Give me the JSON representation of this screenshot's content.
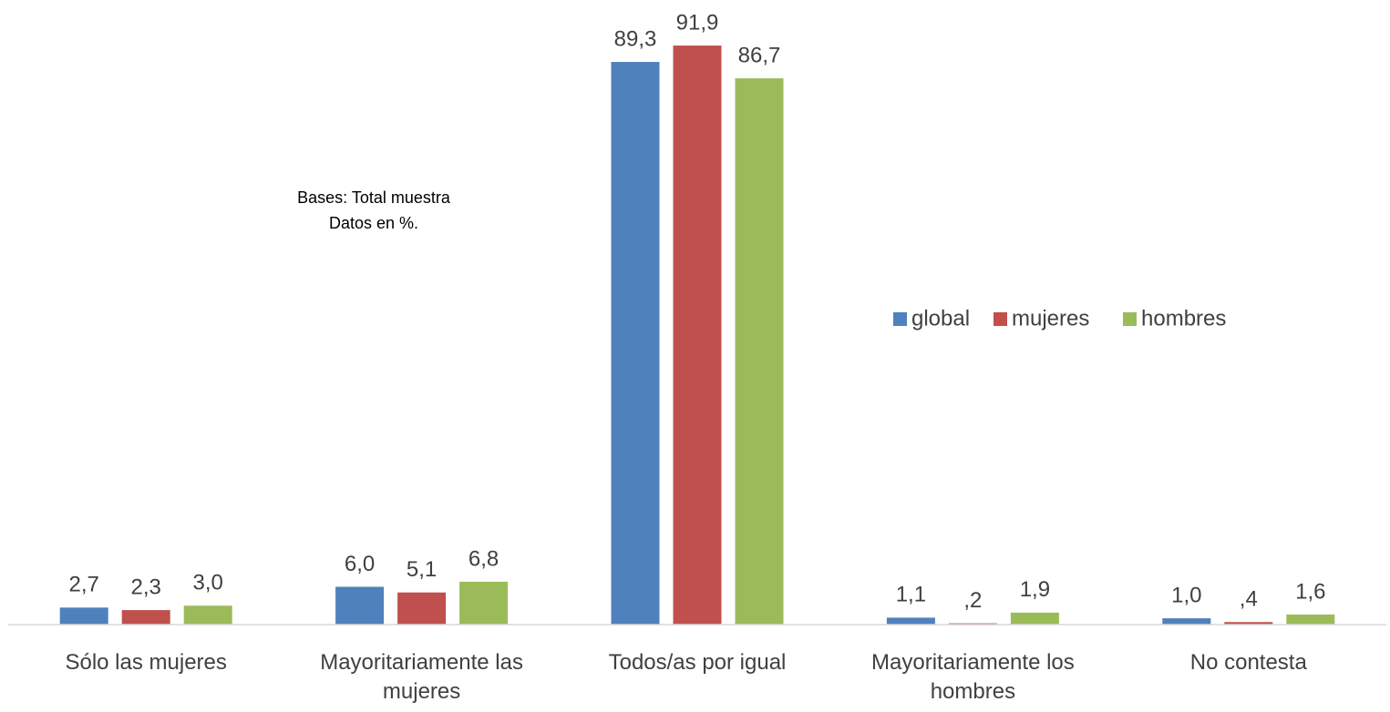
{
  "chart_data": {
    "type": "bar",
    "annotation": [
      "Bases: Total muestra",
      "Datos en %."
    ],
    "categories": [
      "Sólo las mujeres",
      "Mayoritariamente las mujeres",
      "Todos/as por igual",
      "Mayoritariamente los hombres",
      "No contesta"
    ],
    "series": [
      {
        "name": "global",
        "color": "#4f81bd",
        "values": [
          2.7,
          6.0,
          89.3,
          1.1,
          1.0
        ],
        "value_labels": [
          "2,7",
          "6,0",
          "89,3",
          "1,1",
          "1,0"
        ]
      },
      {
        "name": "mujeres",
        "color": "#c0504d",
        "values": [
          2.3,
          5.1,
          91.9,
          0.2,
          0.4
        ],
        "value_labels": [
          "2,3",
          "5,1",
          "91,9",
          ",2",
          ",4"
        ]
      },
      {
        "name": "hombres",
        "color": "#9bbb59",
        "values": [
          3.0,
          6.8,
          86.7,
          1.9,
          1.6
        ],
        "value_labels": [
          "3,0",
          "6,8",
          "86,7",
          "1,9",
          "1,6"
        ]
      }
    ],
    "ylim": [
      0,
      100
    ],
    "legend": "right"
  }
}
